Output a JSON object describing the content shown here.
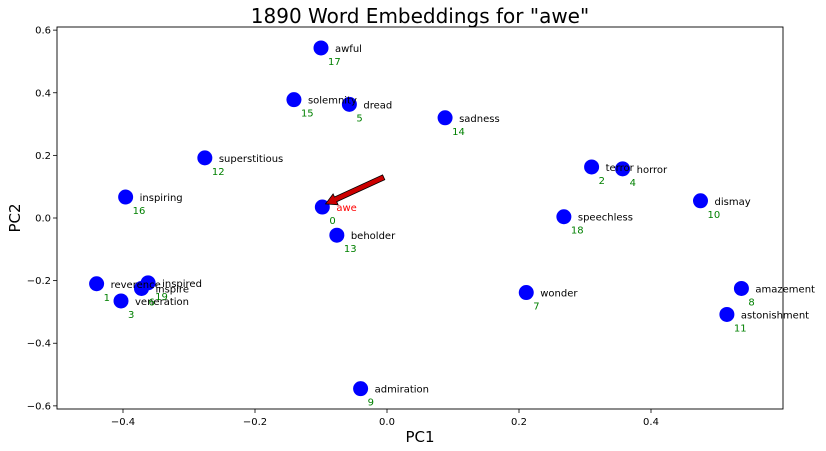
{
  "chart_data": {
    "type": "scatter",
    "title": "1890 Word Embeddings for \"awe\"",
    "xlabel": "PC1",
    "ylabel": "PC2",
    "xlim": [
      -0.5,
      0.6
    ],
    "ylim": [
      -0.61,
      0.61
    ],
    "x_ticks": [
      "−0.4",
      "−0.2",
      "0.0",
      "0.2",
      "0.4"
    ],
    "x_tick_values": [
      -0.4,
      -0.2,
      0.0,
      0.2,
      0.4
    ],
    "y_ticks": [
      "0.6",
      "0.4",
      "0.2",
      "0.0",
      "−0.2",
      "−0.4",
      "−0.6"
    ],
    "y_tick_values": [
      0.6,
      0.4,
      0.2,
      0.0,
      -0.2,
      -0.4,
      -0.6
    ],
    "grid": false,
    "marker_color": "#0000ff",
    "word_color": "#000000",
    "target_word_color": "#ff0000",
    "index_color": "#008000",
    "arrow_color": "#cc0000",
    "arrow": {
      "from": [
        -0.005,
        0.13
      ],
      "to": [
        -0.093,
        0.045
      ]
    },
    "points": [
      {
        "word": "awe",
        "index": "0",
        "x": -0.098,
        "y": 0.035,
        "target": true
      },
      {
        "word": "reverence",
        "index": "1",
        "x": -0.44,
        "y": -0.21
      },
      {
        "word": "terror",
        "index": "2",
        "x": 0.31,
        "y": 0.163
      },
      {
        "word": "veneration",
        "index": "3",
        "x": -0.403,
        "y": -0.265
      },
      {
        "word": "horror",
        "index": "4",
        "x": 0.357,
        "y": 0.157
      },
      {
        "word": "dread",
        "index": "5",
        "x": -0.057,
        "y": 0.363
      },
      {
        "word": "inspire",
        "index": "6",
        "x": -0.372,
        "y": -0.225
      },
      {
        "word": "wonder",
        "index": "7",
        "x": 0.211,
        "y": -0.238
      },
      {
        "word": "amazement",
        "index": "8",
        "x": 0.537,
        "y": -0.225
      },
      {
        "word": "admiration",
        "index": "9",
        "x": -0.04,
        "y": -0.545
      },
      {
        "word": "dismay",
        "index": "10",
        "x": 0.475,
        "y": 0.055
      },
      {
        "word": "astonishment",
        "index": "11",
        "x": 0.515,
        "y": -0.308
      },
      {
        "word": "superstitious",
        "index": "12",
        "x": -0.276,
        "y": 0.192
      },
      {
        "word": "beholder",
        "index": "13",
        "x": -0.076,
        "y": -0.055
      },
      {
        "word": "sadness",
        "index": "14",
        "x": 0.088,
        "y": 0.32
      },
      {
        "word": "solemnity",
        "index": "15",
        "x": -0.141,
        "y": 0.378
      },
      {
        "word": "inspiring",
        "index": "16",
        "x": -0.396,
        "y": 0.067
      },
      {
        "word": "awful",
        "index": "17",
        "x": -0.1,
        "y": 0.543
      },
      {
        "word": "speechless",
        "index": "18",
        "x": 0.268,
        "y": 0.004
      },
      {
        "word": "inspired",
        "index": "19",
        "x": -0.362,
        "y": -0.207
      }
    ]
  }
}
